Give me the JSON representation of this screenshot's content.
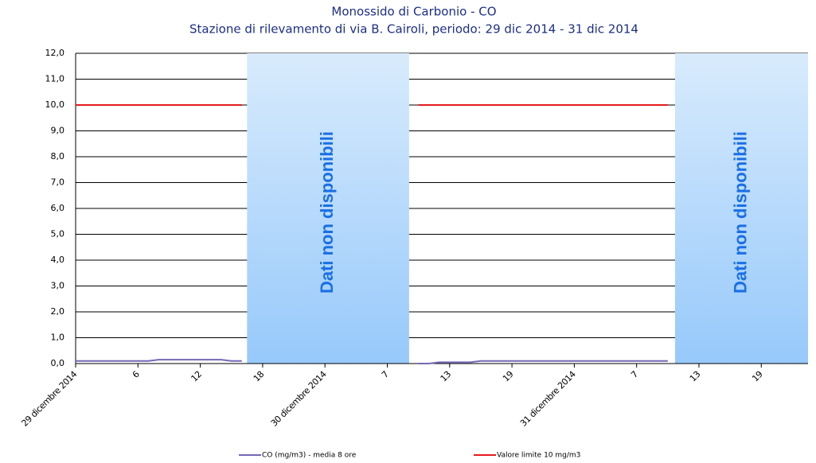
{
  "chart_data": {
    "type": "line",
    "title": "Monossido di Carbonio - CO",
    "subtitle": "Stazione di rilevamento di via B. Cairoli, periodo: 29 dic 2014 - 31 dic 2014",
    "x": [
      0,
      1,
      2,
      3,
      4,
      5,
      6,
      7,
      8,
      9,
      10,
      11,
      12,
      13,
      14,
      15,
      16,
      17,
      18,
      19,
      20,
      21,
      22,
      23,
      24,
      25,
      26,
      27,
      28,
      29,
      30,
      31,
      32,
      33,
      34,
      35,
      36,
      37,
      38,
      39,
      40,
      41,
      42,
      43,
      44,
      45,
      46,
      47,
      48,
      49,
      50,
      51,
      52,
      53,
      54,
      55,
      56,
      57,
      58,
      59,
      60,
      61,
      62,
      63,
      64,
      65,
      66,
      67,
      68,
      69,
      70
    ],
    "series": [
      {
        "name": "CO (mg/m3) - media 8 ore",
        "color": "#7567b5",
        "values": [
          0.1,
          0.1,
          0.1,
          0.1,
          0.1,
          0.1,
          0.1,
          0.1,
          0.15,
          0.15,
          0.15,
          0.15,
          0.15,
          0.15,
          0.15,
          0.1,
          0.1,
          null,
          null,
          null,
          null,
          null,
          null,
          null,
          null,
          null,
          null,
          null,
          null,
          null,
          null,
          null,
          null,
          0,
          0,
          0.05,
          0.05,
          0.05,
          0.05,
          0.1,
          0.1,
          0.1,
          0.1,
          0.1,
          0.1,
          0.1,
          0.1,
          0.1,
          0.1,
          0.1,
          0.1,
          0.1,
          0.1,
          0.1,
          0.1,
          0.1,
          0.1,
          0.1,
          null,
          null,
          null,
          null,
          null,
          null,
          null,
          null,
          null,
          null,
          null,
          null,
          null
        ]
      },
      {
        "name": "Valore limite 10 mg/m3",
        "color": "#e41a1c",
        "values": [
          10,
          10,
          10,
          10,
          10,
          10,
          10,
          10,
          10,
          10,
          10,
          10,
          10,
          10,
          10,
          10,
          10,
          null,
          null,
          null,
          null,
          null,
          null,
          null,
          null,
          null,
          null,
          null,
          null,
          null,
          null,
          null,
          null,
          10,
          10,
          10,
          10,
          10,
          10,
          10,
          10,
          10,
          10,
          10,
          10,
          10,
          10,
          10,
          10,
          10,
          10,
          10,
          10,
          10,
          10,
          10,
          10,
          10,
          null,
          null,
          null,
          null,
          null,
          null,
          null,
          null,
          null,
          null,
          null,
          null,
          null
        ]
      }
    ],
    "bands": [
      {
        "start": 16.5,
        "end": 32.1,
        "label": "Dati non disponibili"
      },
      {
        "start": 57.7,
        "end": 70.5,
        "label": "Dati non disponibili"
      }
    ],
    "xlim": [
      0,
      70.5
    ],
    "xticks": [
      {
        "value": 0,
        "label": "29 dicembre 2014"
      },
      6,
      12,
      18,
      {
        "value": 24,
        "label": "30 dicembre 2014"
      },
      {
        "value": 30,
        "label": "7"
      },
      {
        "value": 36,
        "label": "13"
      },
      {
        "value": 42,
        "label": "19"
      },
      {
        "value": 48,
        "label": "31 dicembre 2014"
      },
      {
        "value": 54,
        "label": "7"
      },
      {
        "value": 60,
        "label": "13"
      },
      {
        "value": 66,
        "label": "19"
      }
    ],
    "ylim": [
      0,
      12
    ],
    "yticks": [
      {
        "value": 0,
        "label": "0,0"
      },
      {
        "value": 1,
        "label": "1,0"
      },
      {
        "value": 2,
        "label": "2,0"
      },
      {
        "value": 3,
        "label": "3,0"
      },
      {
        "value": 4,
        "label": "4,0"
      },
      {
        "value": 5,
        "label": "5,0"
      },
      {
        "value": 6,
        "label": "6,0"
      },
      {
        "value": 7,
        "label": "7,0"
      },
      {
        "value": 8,
        "label": "8,0"
      },
      {
        "value": 9,
        "label": "9,0"
      },
      {
        "value": 10,
        "label": "10,0"
      },
      {
        "value": 11,
        "label": "11,0"
      },
      {
        "value": 12,
        "label": "12,0"
      }
    ],
    "grid": true,
    "legend": "bottom"
  }
}
